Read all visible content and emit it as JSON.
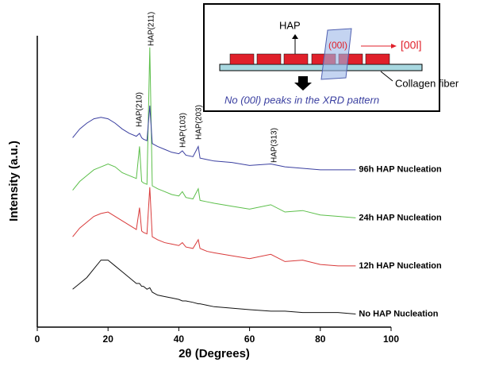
{
  "chart_data": {
    "type": "line",
    "xlabel": "2θ (Degrees)",
    "ylabel": "Intensity (a.u.)",
    "xlim": [
      0,
      100
    ],
    "ylim": [
      0,
      100
    ],
    "xticks": [
      0,
      20,
      40,
      60,
      80,
      100
    ],
    "x": [
      10,
      12,
      14,
      16,
      18,
      20,
      22,
      24,
      26,
      28,
      28.9,
      29.5,
      30,
      31,
      31.8,
      32.5,
      34,
      36,
      38,
      40,
      41,
      42,
      44,
      45.5,
      46,
      48,
      50,
      55,
      60,
      66,
      70,
      75,
      80,
      85,
      90
    ],
    "series": [
      {
        "name": "No HAP Nucleation",
        "color": "#111111",
        "values": [
          13,
          15,
          17,
          20,
          23,
          23,
          21,
          19,
          17,
          15,
          15,
          14,
          14,
          13,
          13.5,
          12,
          11,
          10.5,
          10,
          9.5,
          9,
          9,
          8.5,
          8,
          8,
          7.5,
          7,
          6.5,
          6,
          5.5,
          5.5,
          5,
          5,
          5,
          4.5
        ]
      },
      {
        "name": "12h HAP Nucleation",
        "color": "#d93a3a",
        "values": [
          31,
          34,
          36,
          38,
          39,
          39.5,
          38,
          36.5,
          35,
          33.5,
          41,
          33,
          32.5,
          32,
          48,
          31,
          30,
          29,
          28.5,
          28,
          29,
          27.5,
          27,
          30,
          27,
          26,
          25.5,
          24.5,
          23.5,
          25,
          22.5,
          23,
          21.5,
          21,
          21
        ]
      },
      {
        "name": "24h HAP Nucleation",
        "color": "#5cbf4a",
        "values": [
          47,
          50,
          52,
          54,
          55,
          56,
          55,
          53,
          52,
          51,
          62,
          50,
          49.5,
          49,
          96,
          48.5,
          47.5,
          46.5,
          45.5,
          45,
          46.5,
          44.5,
          44,
          47.5,
          43.5,
          43,
          42.5,
          41.5,
          40.5,
          42,
          39.5,
          40,
          38.5,
          38,
          37.5
        ]
      },
      {
        "name": "96h HAP Nucleation",
        "color": "#3a3fa0",
        "values": [
          65,
          68,
          70,
          71.5,
          72,
          71.5,
          70,
          68,
          66.5,
          65.5,
          66.5,
          65,
          64.5,
          64,
          76,
          63,
          62,
          61,
          60,
          59.5,
          60.5,
          59,
          58.5,
          62,
          58,
          57.5,
          57,
          56.5,
          55.5,
          56,
          55,
          54.5,
          54,
          54,
          54
        ]
      }
    ],
    "annotations": [
      "HAP(210)",
      "HAP(211)",
      "HAP(103)",
      "HAP(203)",
      "HAP(313)"
    ],
    "inset": {
      "hap": "HAP",
      "plane": "(00l)",
      "direction": "[00l]",
      "fiber": "Collagen fiber",
      "note": "No (00l) peaks in the XRD pattern"
    }
  }
}
